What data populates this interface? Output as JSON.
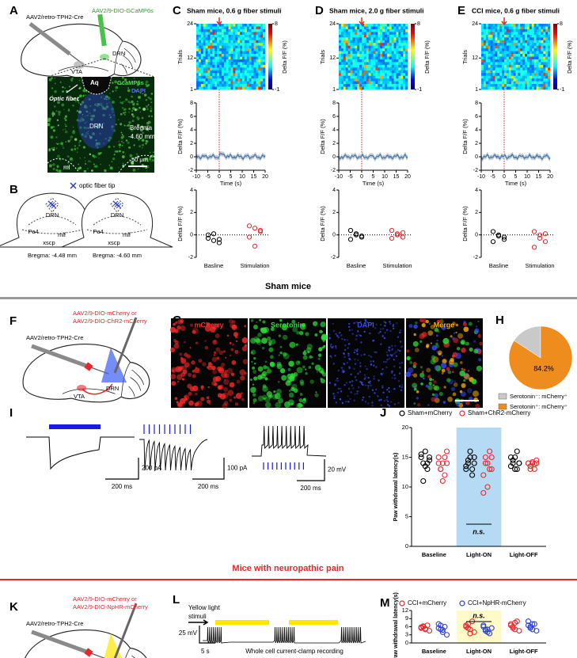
{
  "A": {
    "label": "A",
    "cre": "AAV2/retro-TPH2-Cre",
    "virus": "AAV2/9-DIO-GCaMP6s",
    "drn": "DRN",
    "vta": "VTA",
    "image": {
      "aq": "Aq",
      "gcamp": "GcaMP6s",
      "dapi": "DAPI",
      "fiber": "Optic fiber",
      "drn": "DRN",
      "bregma": "Bregma",
      "mm": "-4.60 mm",
      "ml": "ml",
      "scale": "50 μm"
    }
  },
  "B": {
    "label": "B",
    "legend": "optic fiber tip",
    "sections": [
      {
        "drn": "DRN",
        "pa4": "Pa4",
        "mlf": "mlf",
        "xscp": "xscp",
        "bregma": "Bregma: -4.48 mm"
      },
      {
        "drn": "DRN",
        "pa4": "Pa4",
        "mlf": "mlf",
        "xscp": "xscp",
        "bregma": "Bregma: -4.60 mm"
      }
    ]
  },
  "fiber": [
    {
      "label": "C",
      "title": "Sham mice, 0.6 g fiber stimuli",
      "heatmap": {
        "ylabel": "Trials",
        "ylim": [
          1,
          24
        ],
        "yticks": [
          24,
          12,
          1
        ],
        "colorbar_label": "Delta F/F (%)",
        "colorbar_ticks": [
          8,
          -1
        ]
      },
      "trace": {
        "ylabel": "Delta F/F (%)",
        "xlabel": "Time (s)",
        "xlim": [
          -10,
          20
        ],
        "xticks": [
          -10,
          -5,
          0,
          5,
          10,
          15,
          20
        ],
        "ylim": [
          -2,
          8
        ],
        "yticks": [
          8,
          6,
          4,
          2,
          0,
          -2
        ]
      },
      "dots": {
        "type": "dot",
        "ylabel": "Delta F/F (%)",
        "ylim": [
          -2,
          4
        ],
        "yticks": [
          4,
          2,
          0,
          -2
        ],
        "groups": [
          {
            "category": "Basline",
            "color": "#000000",
            "values": [
              -0.3,
              -0.5,
              -0.7,
              0.0,
              0.1,
              -0.4
            ]
          },
          {
            "category": "Stimulation",
            "color": "#e8262b",
            "values": [
              0.8,
              0.6,
              0.3,
              -0.2,
              -1.0,
              0.4
            ]
          }
        ]
      }
    },
    {
      "label": "D",
      "title": "Sham mice, 2.0 g fiber stimuli",
      "heatmap": {
        "ylabel": "Trials",
        "ylim": [
          1,
          24
        ],
        "yticks": [
          24,
          12,
          1
        ],
        "colorbar_label": "Delta F/F (%)",
        "colorbar_ticks": [
          8,
          -1
        ]
      },
      "trace": {
        "ylabel": "Delta F/F (%)",
        "xlabel": "Time (s)",
        "xlim": [
          -10,
          20
        ],
        "xticks": [
          -10,
          -5,
          0,
          5,
          10,
          15,
          20
        ],
        "ylim": [
          -2,
          8
        ],
        "yticks": [
          8,
          6,
          4,
          2,
          0,
          -2
        ]
      },
      "dots": {
        "type": "dot",
        "ylabel": "Delta F/F (%)",
        "ylim": [
          -2,
          4
        ],
        "yticks": [
          4,
          2,
          0,
          -2
        ],
        "groups": [
          {
            "category": "Basline",
            "color": "#000000",
            "values": [
              0.4,
              0.1,
              -0.2,
              -0.4,
              0.0,
              -0.1
            ]
          },
          {
            "category": "Stimulation",
            "color": "#e8262b",
            "values": [
              0.4,
              0.1,
              -0.2,
              -0.3,
              0.0,
              0.2
            ]
          }
        ]
      }
    },
    {
      "label": "E",
      "title": "CCI mice, 0.6 g fiber stimuli",
      "heatmap": {
        "ylabel": "Trials",
        "ylim": [
          1,
          24
        ],
        "yticks": [
          24,
          12,
          1
        ],
        "colorbar_label": "Delta F/F (%)",
        "colorbar_ticks": [
          8,
          -1
        ]
      },
      "trace": {
        "ylabel": "Delta F/F (%)",
        "xlabel": "Time (s)",
        "xlim": [
          -10,
          20
        ],
        "xticks": [
          -10,
          -5,
          0,
          5,
          10,
          15,
          20
        ],
        "ylim": [
          -2,
          8
        ],
        "yticks": [
          8,
          6,
          4,
          2,
          0,
          -2
        ]
      },
      "dots": {
        "type": "dot",
        "ylabel": "Delta F/F (%)",
        "ylim": [
          -2,
          4
        ],
        "yticks": [
          4,
          2,
          0,
          -2
        ],
        "groups": [
          {
            "category": "Basline",
            "color": "#000000",
            "values": [
              0.3,
              -0.1,
              -0.4,
              -0.6,
              0.0,
              -0.2
            ]
          },
          {
            "category": "Stimulation",
            "color": "#e8262b",
            "values": [
              0.3,
              -0.3,
              -0.6,
              -1.1,
              0.0,
              0.1
            ]
          }
        ]
      }
    }
  ],
  "sham_header": "Sham mice",
  "F": {
    "label": "F",
    "virus1": "AAV2/9-DIO-mCherry or",
    "virus2": "AAV2/9-DIO-ChR2-mCherry",
    "cre": "AAV2/retro-TPH2-Cre",
    "drn": "DRN",
    "vta": "VTA"
  },
  "G": {
    "label": "G",
    "channels": [
      "mCherry",
      "Serotonin",
      "DAPI",
      "Merge"
    ],
    "colors": [
      "#ff2a2a",
      "#2ee03a",
      "#3a4cff",
      "#ffb000"
    ]
  },
  "H": {
    "label": "H",
    "type": "pie",
    "slices": [
      {
        "label": "Serotonin⁻: mCherry⁺",
        "color": "#c9c9c9",
        "value": 15.8
      },
      {
        "label": "Serotonin⁺: mCherry⁺",
        "color": "#ef8c1e",
        "value": 84.2,
        "value_label": "84.2%"
      }
    ]
  },
  "I": {
    "label": "I",
    "scales": [
      {
        "time": "200 ms",
        "amp": "200 pA"
      },
      {
        "time": "200 ms",
        "amp": "100 pA"
      },
      {
        "time": "200 ms",
        "amp": "20 mV"
      }
    ]
  },
  "J": {
    "label": "J",
    "type": "dot",
    "ylabel": "Paw withdrawal latency(s)",
    "ylim": [
      0,
      20
    ],
    "yticks": [
      0,
      5,
      10,
      15,
      20
    ],
    "categories": [
      "Baseline",
      "Light-ON",
      "Light-OFF"
    ],
    "highlight_index": 1,
    "highlight_color": "#b5daf3",
    "annotation": "n.s.",
    "series": [
      {
        "name": "Sham+mCherry",
        "color": "#000000",
        "values": [
          [
            15,
            14,
            16,
            13,
            14.5,
            15.5,
            11,
            13.5,
            14,
            15
          ],
          [
            13,
            14,
            16,
            12,
            15,
            13.5,
            14.5,
            15,
            13,
            14
          ],
          [
            15,
            14,
            13,
            16,
            14,
            13.5,
            14.5,
            15,
            13,
            14
          ]
        ]
      },
      {
        "name": "Sham+ChR2-mCherry",
        "color": "#e8262b",
        "values": [
          [
            15,
            13,
            14,
            12,
            16,
            14,
            13,
            11,
            15,
            14
          ],
          [
            12,
            14,
            10,
            16,
            13,
            9,
            15,
            14,
            13,
            15
          ],
          [
            14,
            13.5,
            14,
            13,
            14.5,
            14,
            13,
            14.2,
            13.8,
            14
          ]
        ]
      }
    ]
  },
  "pain_header": "Mice with neuropathic pain",
  "K": {
    "label": "K",
    "virus1": "AAV2/9-DIO-mCherry or",
    "virus2": "AAV2/9-DIO-NpHR-mCherry",
    "cre": "AAV2/retro-TPH2-Cre",
    "drn": "DRN",
    "vta": "VTA"
  },
  "L": {
    "label": "L",
    "light": "Yellow light",
    "light2": "stimuli",
    "amp": "25 mV",
    "time": "5 s",
    "caption": "Whole cell current-clamp recording"
  },
  "M": {
    "label": "M",
    "type": "dot",
    "ylabel": "Paw withdrawal latency(s)",
    "ylim": [
      0,
      12
    ],
    "yticks": [
      0,
      3,
      6,
      9,
      12
    ],
    "categories": [
      "Baseline",
      "Light-ON",
      "Light-OFF"
    ],
    "highlight_index": 1,
    "highlight_color": "#fffbc8",
    "annotation": "n.s.",
    "series": [
      {
        "name": "CCI+mCherry",
        "color": "#e8262b",
        "values": [
          [
            5.5,
            6,
            5,
            6.5,
            4.5,
            5.8,
            6.2,
            5.3
          ],
          [
            6,
            7,
            5,
            8,
            4,
            6.5,
            5.5,
            3.5
          ],
          [
            7,
            6,
            5,
            8,
            4.5,
            6.5,
            5.5,
            7.5
          ]
        ]
      },
      {
        "name": "CCI+NpHR-mCherry",
        "color": "#2a3fd6",
        "values": [
          [
            7,
            5,
            4,
            6,
            3,
            5.5,
            6.5,
            4.8
          ],
          [
            6,
            5,
            4,
            3.5,
            5.5,
            6.5,
            4.5,
            5
          ],
          [
            8,
            6,
            5,
            7,
            4.5,
            6.5,
            5.5,
            7
          ]
        ]
      }
    ]
  }
}
